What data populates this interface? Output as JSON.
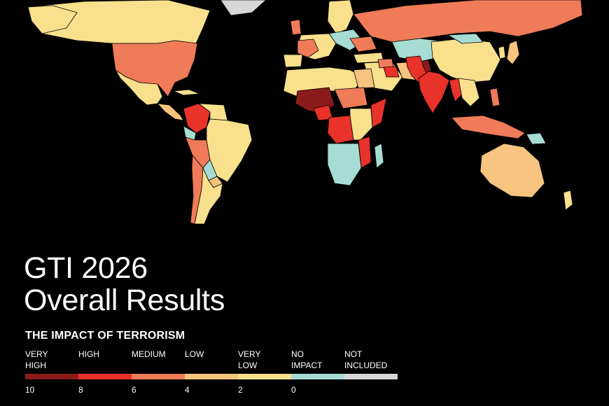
{
  "title": {
    "line1": "GTI 2026",
    "line2": "Overall Results"
  },
  "subtitle": "THE IMPACT OF TERRORISM",
  "legend": {
    "categories": [
      {
        "label": "VERY\nHIGH",
        "color": "#8b1a1a"
      },
      {
        "label": "HIGH",
        "color": "#e8322a"
      },
      {
        "label": "MEDIUM",
        "color": "#f07b58"
      },
      {
        "label": "LOW",
        "color": "#f6c47e"
      },
      {
        "label": "VERY\nLOW",
        "color": "#f8e08d"
      },
      {
        "label": "NO\nIMPACT",
        "color": "#a6dcd3"
      },
      {
        "label": "NOT\nINCLUDED",
        "color": "#d7d7d7"
      }
    ],
    "ticks": [
      "10",
      "8",
      "6",
      "4",
      "2",
      "0"
    ]
  },
  "map_colors": {
    "very_high": "#8b1a1a",
    "high": "#e8322a",
    "medium": "#f07b58",
    "low": "#f6c47e",
    "very_low": "#f8e08d",
    "no_impact": "#a6dcd3",
    "not_included": "#d7d7d7"
  }
}
